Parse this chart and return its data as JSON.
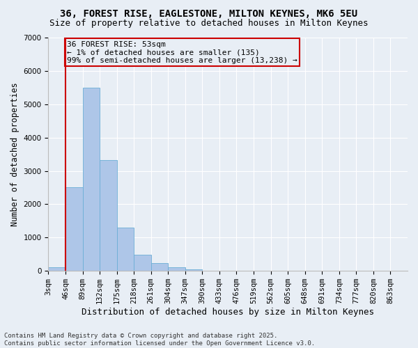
{
  "title1": "36, FOREST RISE, EAGLESTONE, MILTON KEYNES, MK6 5EU",
  "title2": "Size of property relative to detached houses in Milton Keynes",
  "xlabel": "Distribution of detached houses by size in Milton Keynes",
  "ylabel": "Number of detached properties",
  "categories": [
    "3sqm",
    "46sqm",
    "89sqm",
    "132sqm",
    "175sqm",
    "218sqm",
    "261sqm",
    "304sqm",
    "347sqm",
    "390sqm",
    "433sqm",
    "476sqm",
    "519sqm",
    "562sqm",
    "605sqm",
    "648sqm",
    "691sqm",
    "734sqm",
    "777sqm",
    "820sqm",
    "863sqm"
  ],
  "bar_values": [
    100,
    2520,
    5500,
    3320,
    1300,
    490,
    230,
    100,
    55,
    10,
    5,
    3,
    2,
    1,
    1,
    0,
    0,
    0,
    0,
    0,
    0
  ],
  "bar_color": "#aec6e8",
  "bar_edge_color": "#6baed6",
  "vline_color": "#cc0000",
  "annotation_text": "36 FOREST RISE: 53sqm\n← 1% of detached houses are smaller (135)\n99% of semi-detached houses are larger (13,238) →",
  "annotation_box_color": "#cc0000",
  "ylim": [
    0,
    7000
  ],
  "yticks": [
    0,
    1000,
    2000,
    3000,
    4000,
    5000,
    6000,
    7000
  ],
  "bg_color": "#e8eef5",
  "grid_color": "#ffffff",
  "footer1": "Contains HM Land Registry data © Crown copyright and database right 2025.",
  "footer2": "Contains public sector information licensed under the Open Government Licence v3.0.",
  "title_fontsize": 10,
  "subtitle_fontsize": 9,
  "axis_label_fontsize": 8.5,
  "tick_fontsize": 7.5,
  "annotation_fontsize": 8,
  "footer_fontsize": 6.5
}
